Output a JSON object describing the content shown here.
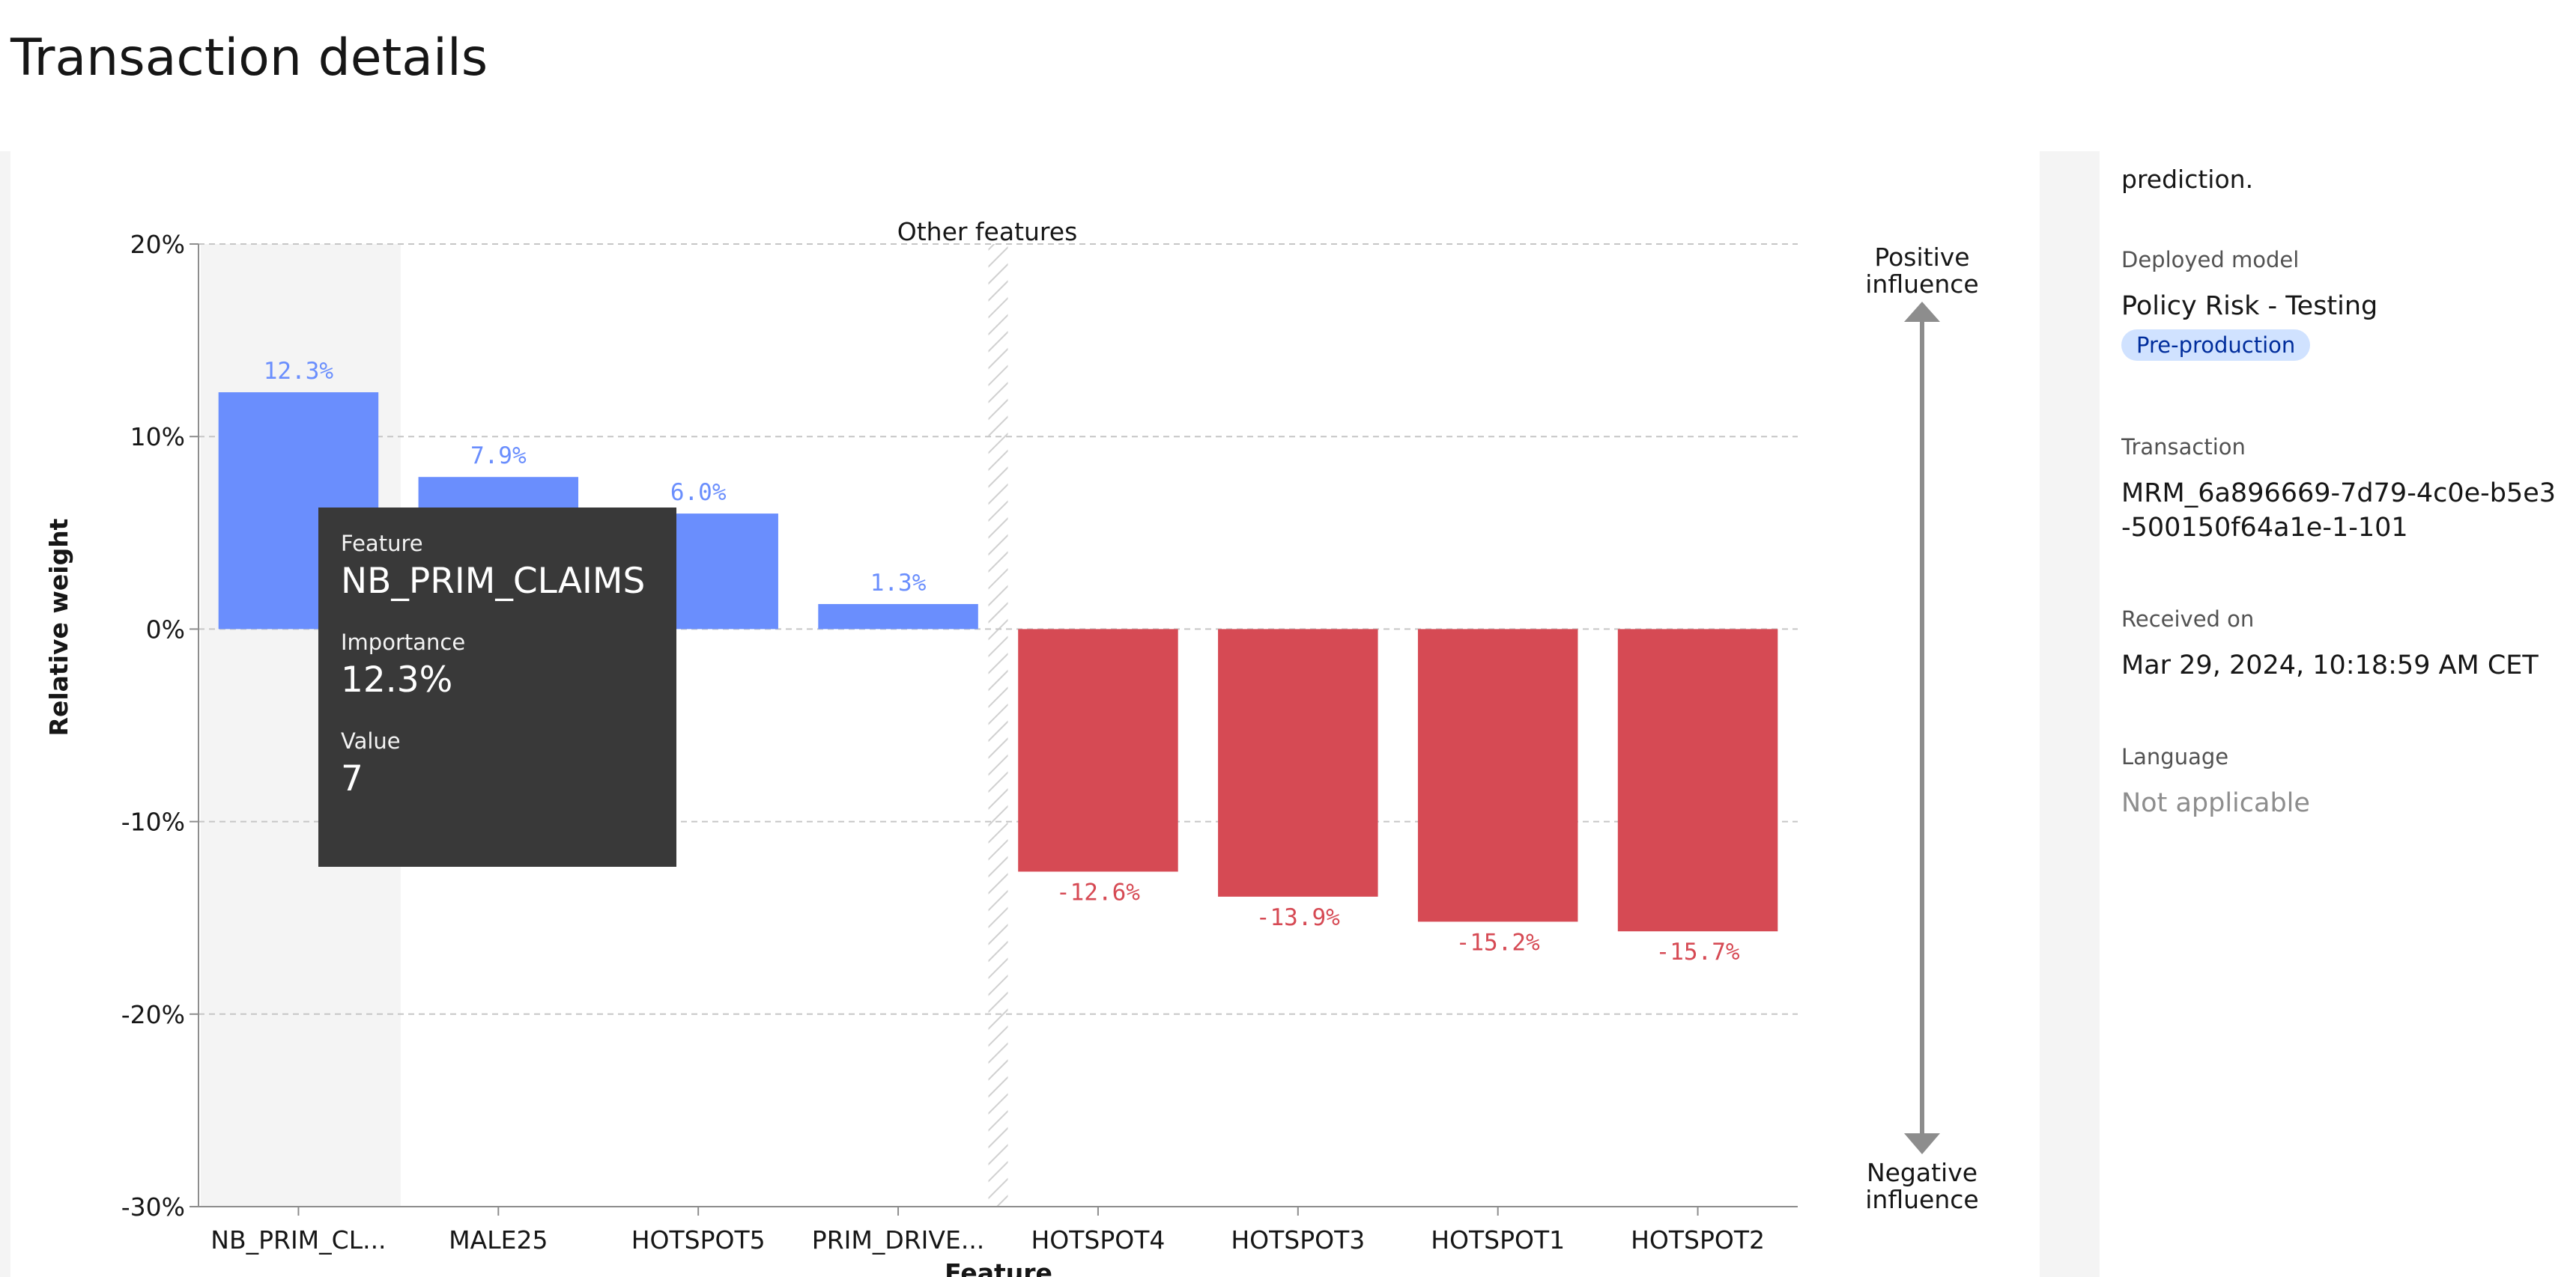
{
  "page": {
    "title": "Transaction details"
  },
  "chart_data": {
    "type": "bar",
    "categories": [
      "NB_PRIM_CL...",
      "MALE25",
      "HOTSPOT5",
      "PRIM_DRIVE...",
      "HOTSPOT4",
      "HOTSPOT3",
      "HOTSPOT1",
      "HOTSPOT2"
    ],
    "values": [
      12.3,
      7.9,
      6.0,
      1.3,
      -12.6,
      -13.9,
      -15.2,
      -15.7
    ],
    "value_labels": [
      "12.3%",
      "7.9%",
      "6.0%",
      "1.3%",
      "-12.6%",
      "-13.9%",
      "-15.2%",
      "-15.7%"
    ],
    "ylabel": "Relative weight",
    "xlabel": "Feature",
    "ylim": [
      -30,
      20
    ],
    "yticks": [
      20,
      10,
      0,
      -10,
      -20,
      -30
    ],
    "ytick_labels": [
      "20%",
      "10%",
      "0%",
      "-10%",
      "-20%",
      "-30%"
    ],
    "grid": true,
    "colors": {
      "positive": "#6a8efd",
      "negative": "#d64a54"
    },
    "section_annotation": "Other features",
    "top_indicator": "Positive influence",
    "bottom_indicator": "Negative influence",
    "highlighted_category": "NB_PRIM_CL..."
  },
  "tooltip": {
    "feature_label": "Feature",
    "feature_value": "NB_PRIM_CLAIMS",
    "importance_label": "Importance",
    "importance_value": "12.3%",
    "value_label": "Value",
    "value_value": "7"
  },
  "side_panel": {
    "description_tail": "prediction.",
    "deployed_model_label": "Deployed model",
    "deployed_model_value": "Policy Risk - Testing",
    "deployed_model_tag": "Pre-production",
    "transaction_label": "Transaction",
    "transaction_value": "MRM_6a896669-7d79-4c0e-b5e3-500150f64a1e-1-101",
    "received_label": "Received on",
    "received_value": "Mar 29, 2024, 10:18:59 AM CET",
    "language_label": "Language",
    "language_value": "Not applicable"
  }
}
